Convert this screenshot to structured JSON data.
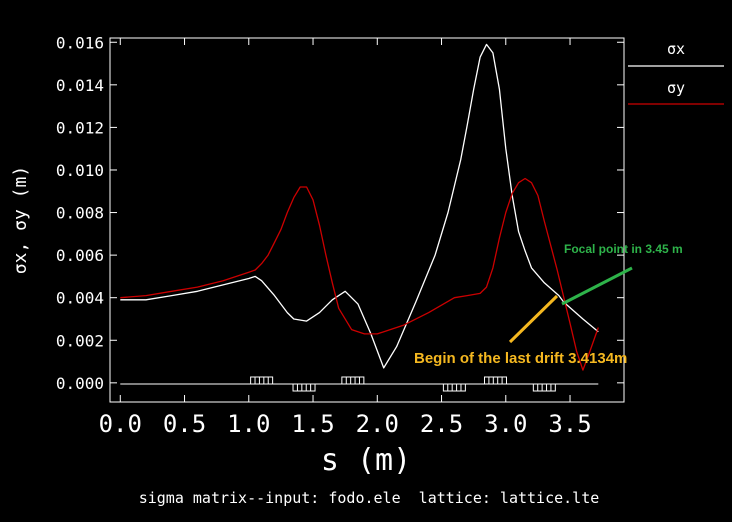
{
  "chart_data": {
    "type": "line",
    "xlabel": "s (m)",
    "ylabel": "σx, σy (m)",
    "caption": "sigma matrix--input: fodo.ele  lattice: lattice.lte",
    "xlim": [
      -0.08,
      3.92
    ],
    "ylim": [
      -0.0009,
      0.0162
    ],
    "x_ticks": [
      "0.0",
      "0.5",
      "1.0",
      "1.5",
      "2.0",
      "2.5",
      "3.0",
      "3.5"
    ],
    "y_ticks": [
      "0.000",
      "0.002",
      "0.004",
      "0.006",
      "0.008",
      "0.010",
      "0.012",
      "0.014",
      "0.016"
    ],
    "legend_position": "right",
    "series": [
      {
        "name": "σx",
        "color": "#ffffff",
        "x": [
          0.0,
          0.2,
          0.4,
          0.6,
          0.8,
          1.0,
          1.05,
          1.1,
          1.2,
          1.3,
          1.35,
          1.45,
          1.55,
          1.65,
          1.75,
          1.85,
          1.95,
          2.05,
          2.15,
          2.3,
          2.45,
          2.55,
          2.65,
          2.7,
          2.75,
          2.8,
          2.85,
          2.9,
          2.95,
          3.0,
          3.05,
          3.1,
          3.15,
          3.2,
          3.3,
          3.4134,
          3.45,
          3.6,
          3.72
        ],
        "y": [
          0.0039,
          0.0039,
          0.0041,
          0.0043,
          0.0046,
          0.0049,
          0.005,
          0.0048,
          0.0041,
          0.0033,
          0.003,
          0.0029,
          0.0033,
          0.0039,
          0.0043,
          0.0037,
          0.0023,
          0.0007,
          0.0017,
          0.0038,
          0.006,
          0.008,
          0.0105,
          0.0121,
          0.0138,
          0.0153,
          0.0159,
          0.0155,
          0.0138,
          0.011,
          0.0088,
          0.0071,
          0.0062,
          0.0054,
          0.0047,
          0.0041,
          0.0038,
          0.003,
          0.0024
        ]
      },
      {
        "name": "σy",
        "color": "#cc0000",
        "x": [
          0.0,
          0.2,
          0.4,
          0.6,
          0.8,
          1.0,
          1.05,
          1.1,
          1.15,
          1.2,
          1.25,
          1.3,
          1.35,
          1.4,
          1.45,
          1.5,
          1.55,
          1.6,
          1.65,
          1.7,
          1.8,
          1.9,
          2.0,
          2.2,
          2.4,
          2.6,
          2.7,
          2.8,
          2.85,
          2.9,
          2.95,
          3.0,
          3.05,
          3.1,
          3.15,
          3.2,
          3.25,
          3.3,
          3.4,
          3.5,
          3.55,
          3.6,
          3.65,
          3.72
        ],
        "y": [
          0.004,
          0.0041,
          0.0043,
          0.0045,
          0.0048,
          0.0052,
          0.0053,
          0.0056,
          0.006,
          0.0066,
          0.0072,
          0.008,
          0.0087,
          0.0092,
          0.0092,
          0.0086,
          0.0074,
          0.006,
          0.0047,
          0.0035,
          0.0025,
          0.0023,
          0.0023,
          0.0027,
          0.0033,
          0.004,
          0.0041,
          0.0042,
          0.0045,
          0.0054,
          0.0068,
          0.008,
          0.0089,
          0.0094,
          0.0096,
          0.0094,
          0.0088,
          0.0076,
          0.0053,
          0.0028,
          0.0015,
          0.0006,
          0.0014,
          0.0026
        ]
      }
    ],
    "elements": [
      {
        "s": 1.1,
        "type": "focusing"
      },
      {
        "s": 1.43,
        "type": "defocusing"
      },
      {
        "s": 1.81,
        "type": "focusing"
      },
      {
        "s": 2.6,
        "type": "defocusing"
      },
      {
        "s": 2.92,
        "type": "focusing"
      },
      {
        "s": 3.3,
        "type": "defocusing"
      }
    ],
    "annotations": [
      {
        "text": "Focal point in 3.45  m",
        "color": "#2eb34a",
        "target": [
          3.45,
          0.0039
        ]
      },
      {
        "text": "Begin of the last drift 3.4134m",
        "color": "#f5b820",
        "target": [
          3.4134,
          0.0042
        ]
      }
    ]
  }
}
